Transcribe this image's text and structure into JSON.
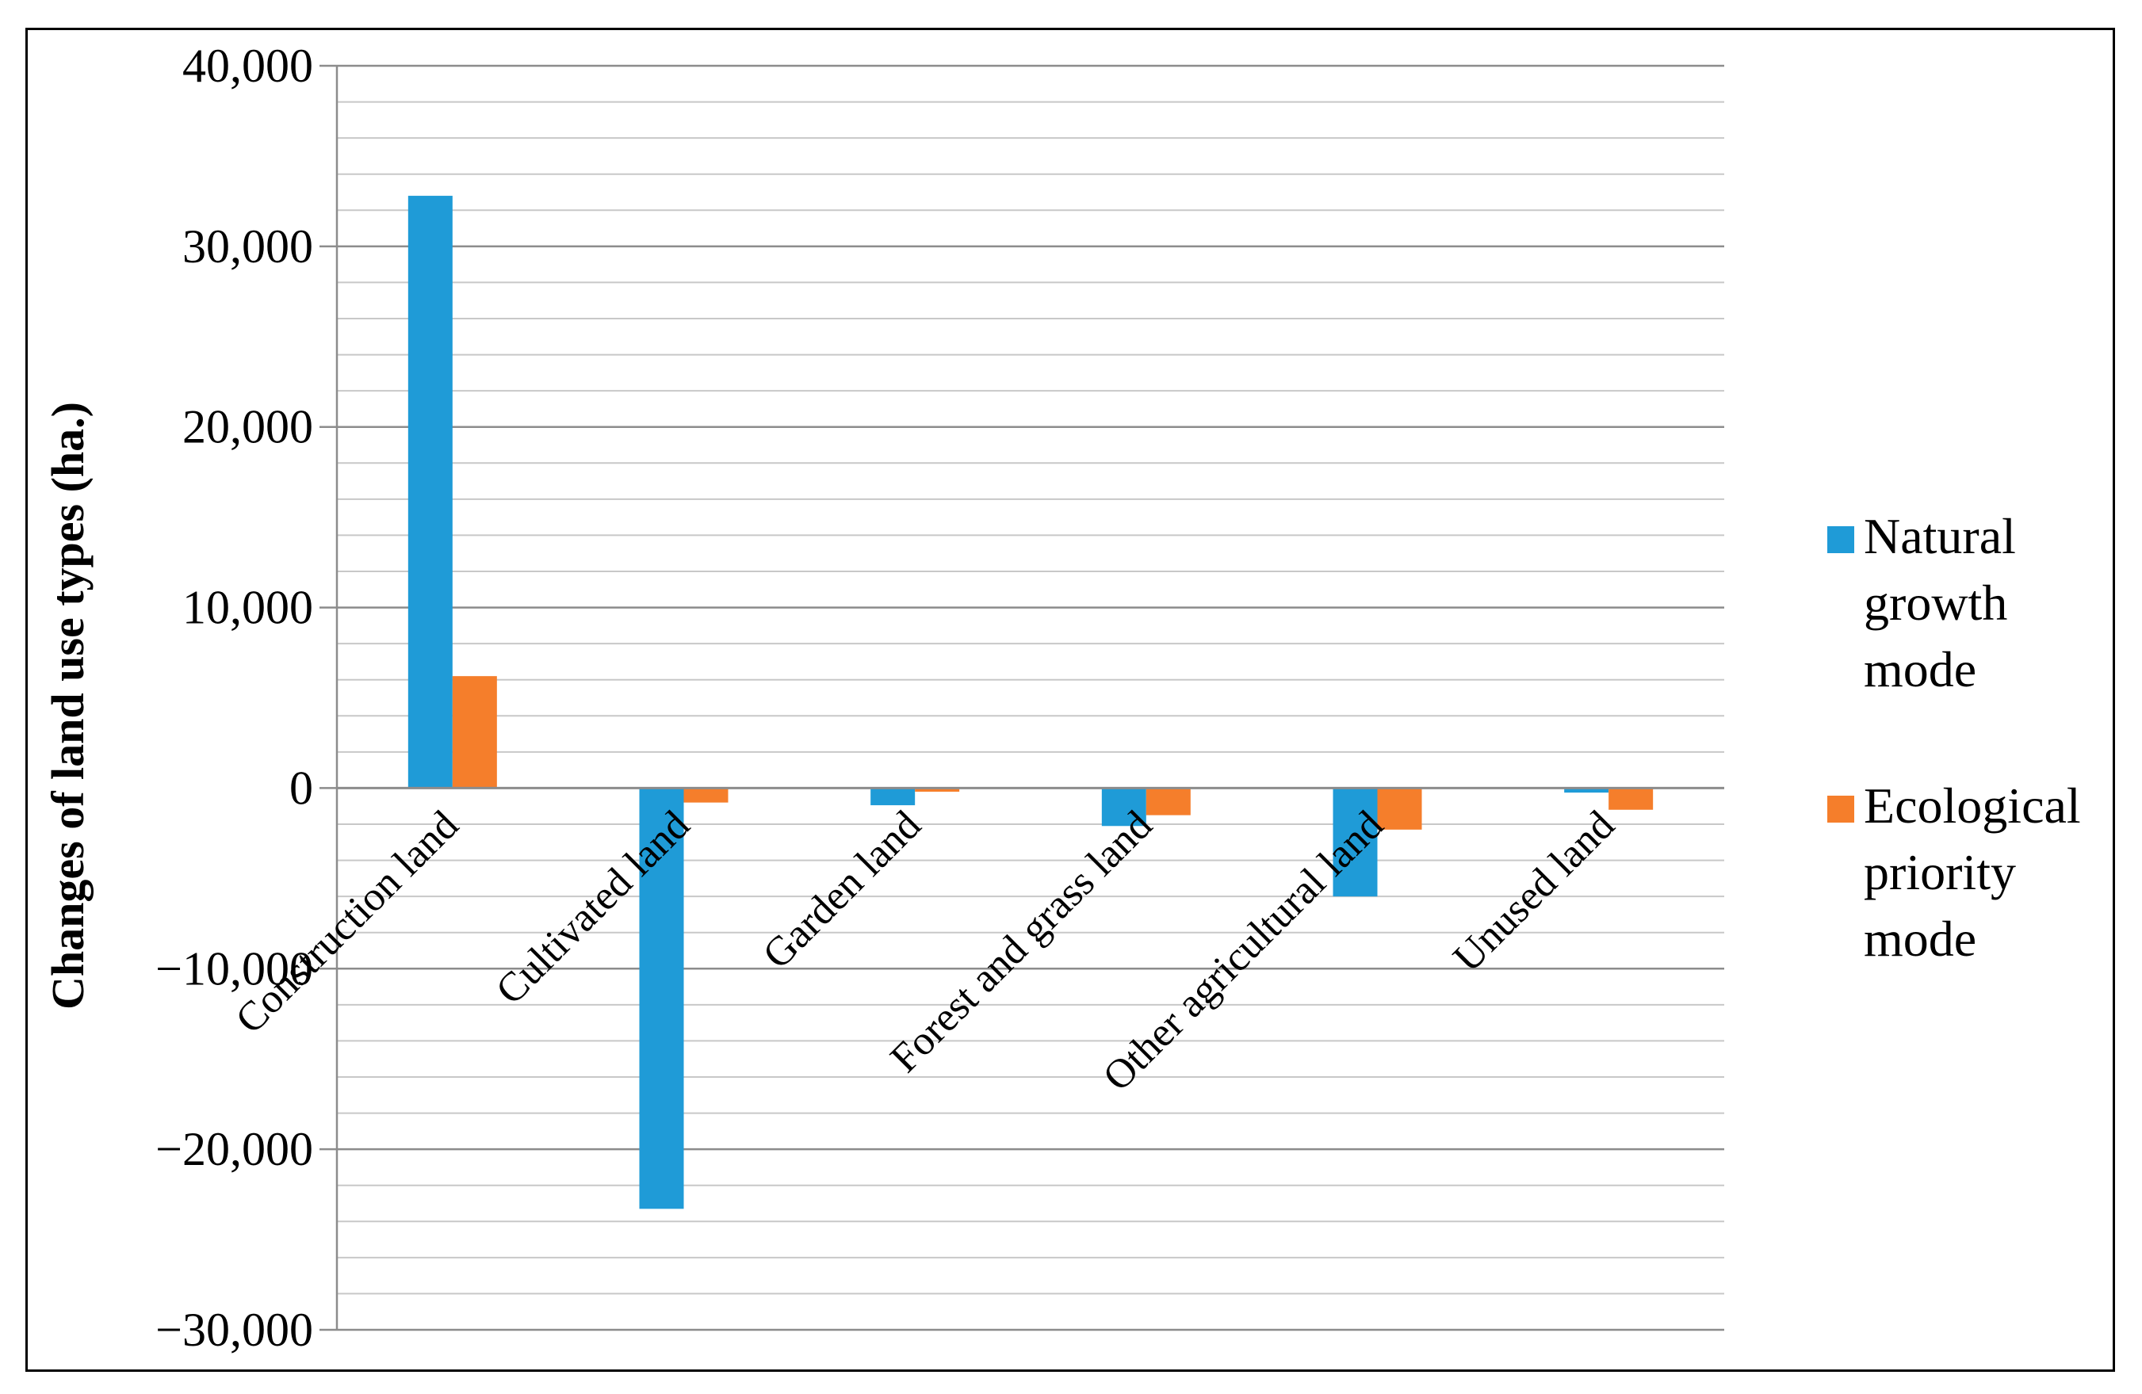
{
  "chart_data": {
    "type": "bar",
    "title": "",
    "xlabel": "",
    "ylabel": "Changes of land use types (ha.)",
    "ylim": [
      -30000,
      40000
    ],
    "yticks": [
      -30000,
      -20000,
      -10000,
      0,
      10000,
      20000,
      30000,
      40000
    ],
    "ytick_labels": [
      "−30,000",
      "−20,000",
      "−10,000",
      "0",
      "10,000",
      "20,000",
      "30,000",
      "40,000"
    ],
    "minor_gridline_step": 2000,
    "grid": true,
    "legend_position": "right",
    "categories": [
      "Construction land",
      "Cultivated land",
      "Garden land",
      "Forest and grass land",
      "Other agricultural land",
      "Unused land"
    ],
    "series": [
      {
        "name": "Natural growth mode",
        "legend_lines": [
          "Natural",
          "growth",
          "mode"
        ],
        "color": "#1f9bd7",
        "values": [
          32800,
          -23300,
          -950,
          -2100,
          -6000,
          -250
        ]
      },
      {
        "name": "Ecological priority mode",
        "legend_lines": [
          "Ecological",
          "priority",
          "mode"
        ],
        "color": "#f57e2b",
        "values": [
          6200,
          -800,
          -200,
          -1500,
          -2300,
          -1200
        ]
      }
    ]
  }
}
